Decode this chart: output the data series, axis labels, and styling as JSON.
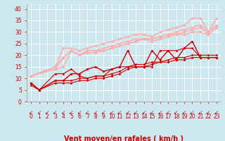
{
  "xlabel": "Vent moyen/en rafales ( km/h )",
  "ylabel": "",
  "xlim": [
    -0.5,
    23.5
  ],
  "ylim": [
    0,
    42
  ],
  "xticks": [
    0,
    1,
    2,
    3,
    4,
    5,
    6,
    7,
    8,
    9,
    10,
    11,
    12,
    13,
    14,
    15,
    16,
    17,
    18,
    19,
    20,
    21,
    22,
    23
  ],
  "yticks": [
    0,
    5,
    10,
    15,
    20,
    25,
    30,
    35,
    40
  ],
  "bg_color": "#cce8ee",
  "grid_color": "#ffffff",
  "lines": [
    {
      "x": [
        0,
        1,
        3,
        4,
        5,
        6,
        7,
        8,
        9,
        10,
        11,
        12,
        13,
        14,
        15,
        16,
        17,
        18,
        19,
        20,
        21,
        22,
        23
      ],
      "y": [
        7,
        5,
        8,
        8,
        8,
        9,
        9,
        10,
        10,
        11,
        12,
        14,
        15,
        15,
        16,
        17,
        17,
        18,
        18,
        19,
        19,
        19,
        19
      ],
      "color": "#cc0000",
      "lw": 0.8,
      "marker": "D",
      "ms": 1.8,
      "alpha": 1.0,
      "zorder": 5
    },
    {
      "x": [
        0,
        1,
        3,
        4,
        5,
        6,
        7,
        8,
        9,
        10,
        11,
        12,
        13,
        14,
        15,
        16,
        17,
        18,
        19,
        20,
        21,
        22,
        23
      ],
      "y": [
        8,
        5,
        9,
        9,
        9,
        10,
        10,
        11,
        11,
        12,
        13,
        15,
        16,
        16,
        17,
        17,
        18,
        19,
        19,
        20,
        20,
        20,
        20
      ],
      "color": "#cc0000",
      "lw": 0.8,
      "marker": "D",
      "ms": 1.8,
      "alpha": 1.0,
      "zorder": 5
    },
    {
      "x": [
        0,
        1,
        3,
        4,
        5,
        6,
        7,
        8,
        9,
        10,
        11,
        12,
        13,
        14,
        15,
        16,
        17,
        18,
        19,
        20,
        21,
        22,
        23
      ],
      "y": [
        8,
        5,
        9,
        9,
        12,
        12,
        14,
        15,
        13,
        14,
        15,
        22,
        15,
        15,
        22,
        18,
        22,
        18,
        23,
        26,
        19,
        19,
        19
      ],
      "color": "#cc0000",
      "lw": 1.0,
      "marker": "D",
      "ms": 2.0,
      "alpha": 1.0,
      "zorder": 6
    },
    {
      "x": [
        0,
        1,
        3,
        4,
        5,
        6,
        7,
        8,
        9,
        10,
        11,
        12,
        13,
        14,
        15,
        16,
        17,
        18,
        19,
        20,
        21,
        22,
        23
      ],
      "y": [
        8,
        5,
        12,
        12,
        14,
        11,
        10,
        11,
        11,
        14,
        15,
        15,
        15,
        15,
        15,
        22,
        22,
        22,
        23,
        23,
        19,
        19,
        19
      ],
      "color": "#cc0000",
      "lw": 0.8,
      "marker": "D",
      "ms": 1.8,
      "alpha": 1.0,
      "zorder": 5
    },
    {
      "x": [
        0,
        3,
        4,
        5,
        6,
        7,
        8,
        9,
        10,
        11,
        12,
        13,
        14,
        15,
        16,
        17,
        18,
        19,
        20,
        21,
        22,
        23
      ],
      "y": [
        11,
        15,
        23,
        23,
        22,
        23,
        24,
        25,
        26,
        27,
        28,
        29,
        29,
        28,
        30,
        31,
        32,
        33,
        36,
        36,
        30,
        36
      ],
      "color": "#ffaaaa",
      "lw": 1.0,
      "marker": "D",
      "ms": 2.0,
      "alpha": 1.0,
      "zorder": 4
    },
    {
      "x": [
        0,
        3,
        4,
        5,
        6,
        7,
        8,
        9,
        10,
        11,
        12,
        13,
        14,
        15,
        16,
        17,
        18,
        19,
        20,
        21,
        22,
        23
      ],
      "y": [
        11,
        15,
        19,
        22,
        20,
        22,
        22,
        23,
        24,
        25,
        26,
        27,
        27,
        27,
        28,
        29,
        30,
        31,
        32,
        33,
        30,
        33
      ],
      "color": "#ffaaaa",
      "lw": 1.0,
      "marker": "D",
      "ms": 2.0,
      "alpha": 1.0,
      "zorder": 4
    },
    {
      "x": [
        0,
        3,
        4,
        5,
        6,
        7,
        8,
        9,
        10,
        11,
        12,
        13,
        14,
        15,
        16,
        17,
        18,
        19,
        20,
        21,
        22,
        23
      ],
      "y": [
        11,
        14,
        19,
        22,
        20,
        22,
        22,
        22,
        23,
        24,
        25,
        26,
        27,
        27,
        28,
        29,
        29,
        30,
        31,
        32,
        29,
        32
      ],
      "color": "#ffaaaa",
      "lw": 1.0,
      "marker": "D",
      "ms": 2.0,
      "alpha": 1.0,
      "zorder": 4
    },
    {
      "x": [
        0,
        3,
        4,
        5,
        6,
        7,
        8,
        9,
        10,
        11,
        12,
        13,
        14,
        15,
        16,
        17,
        18,
        19,
        20,
        21,
        22,
        23
      ],
      "y": [
        11,
        14,
        15,
        22,
        20,
        21,
        21,
        22,
        23,
        24,
        25,
        26,
        27,
        26,
        27,
        28,
        29,
        29,
        30,
        30,
        29,
        32
      ],
      "color": "#ffaaaa",
      "lw": 1.0,
      "marker": "D",
      "ms": 2.0,
      "alpha": 1.0,
      "zorder": 3
    }
  ],
  "arrow_color": "#cc0000",
  "font_color": "#cc0000",
  "xlabel_fontsize": 7,
  "tick_fontsize": 5.5
}
